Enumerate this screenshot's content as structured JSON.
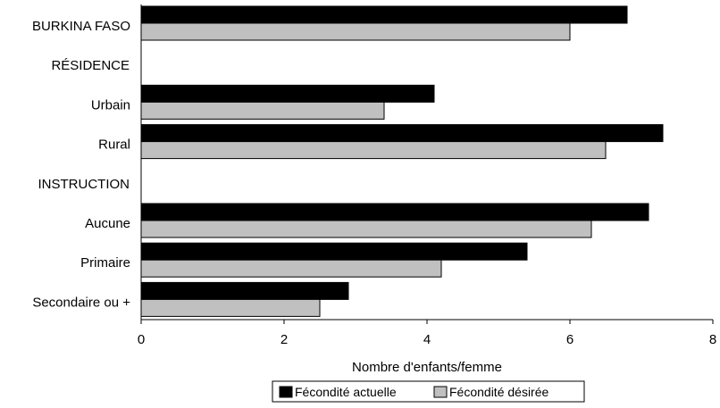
{
  "chart_data": {
    "type": "bar",
    "orientation": "horizontal",
    "title": "",
    "xlabel": "Nombre d'enfants/femme",
    "ylabel": "",
    "xlim": [
      0,
      8
    ],
    "xticks": [
      "0",
      "2",
      "4",
      "6",
      "8"
    ],
    "grid": false,
    "legend_position": "bottom",
    "categories": [
      "BURKINA FASO",
      "RÉSIDENCE",
      "Urbain",
      "Rural",
      "INSTRUCTION",
      "Aucune",
      "Primaire",
      "Secondaire ou +"
    ],
    "series": [
      {
        "name": "Fécondité actuelle",
        "color": "#000000",
        "values": [
          6.8,
          null,
          4.1,
          7.3,
          null,
          7.1,
          5.4,
          2.9
        ]
      },
      {
        "name": "Fécondité désirée",
        "color": "#c0c0c0",
        "values": [
          6.0,
          null,
          3.4,
          6.5,
          null,
          6.3,
          4.2,
          2.5
        ]
      }
    ]
  }
}
